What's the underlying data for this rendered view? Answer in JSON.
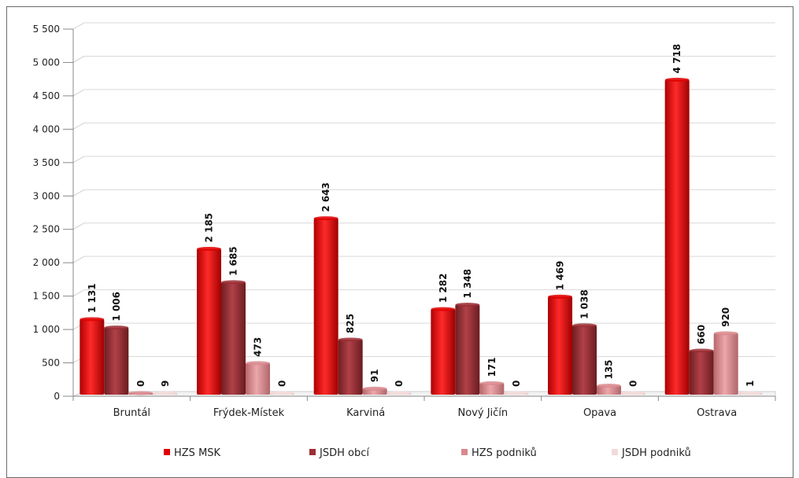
{
  "chart_data": {
    "type": "bar",
    "title": "",
    "xlabel": "",
    "ylabel": "",
    "ylim": [
      0,
      5500
    ],
    "yticks": [
      0,
      500,
      1000,
      1500,
      2000,
      2500,
      3000,
      3500,
      4000,
      4500,
      5000,
      5500
    ],
    "ytick_labels": [
      "0",
      "500",
      "1 000",
      "1 500",
      "2 000",
      "2 500",
      "3 000",
      "3 500",
      "4 000",
      "4 500",
      "5 000",
      "5 500"
    ],
    "grid": true,
    "legend_position": "bottom",
    "categories": [
      "Bruntál",
      "Frýdek-Místek",
      "Karviná",
      "Nový Jičín",
      "Opava",
      "Ostrava"
    ],
    "series": [
      {
        "name": "HZS MSK",
        "color": "#e00000",
        "values": [
          1131,
          2185,
          2643,
          1282,
          1469,
          4718
        ],
        "labels": [
          "1 131",
          "2 185",
          "2 643",
          "1 282",
          "1 469",
          "4 718"
        ]
      },
      {
        "name": "JSDH obcí",
        "color": "#9b2f35",
        "values": [
          1006,
          1685,
          825,
          1348,
          1038,
          660
        ],
        "labels": [
          "1 006",
          "1 685",
          "825",
          "1 348",
          "1 038",
          "660"
        ]
      },
      {
        "name": "HZS podniků",
        "color": "#d9898e",
        "values": [
          0,
          473,
          91,
          171,
          135,
          920
        ],
        "labels": [
          "0",
          "473",
          "91",
          "171",
          "135",
          "920"
        ]
      },
      {
        "name": "JSDH podniků",
        "color": "#f3dada",
        "values": [
          9,
          0,
          0,
          0,
          0,
          1
        ],
        "labels": [
          "9",
          "0",
          "0",
          "0",
          "0",
          "1"
        ]
      }
    ]
  }
}
